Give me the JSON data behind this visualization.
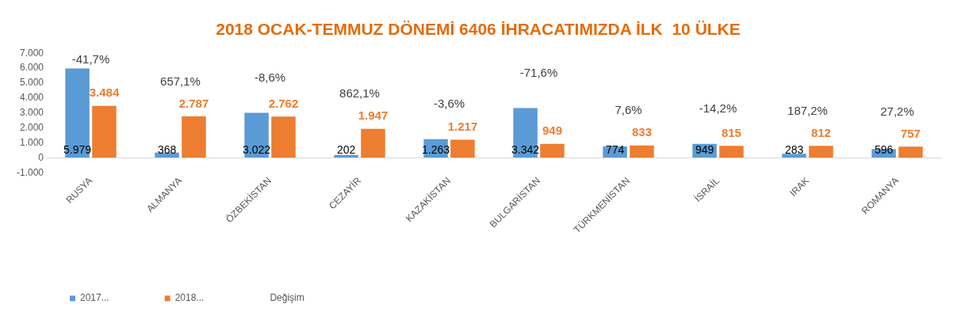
{
  "chart_data": {
    "type": "bar",
    "title": "2018 OCAK-TEMMUZ DÖNEMİ 6406 İHRACATIMIZDA İLK  10 ÜLKE",
    "categories": [
      "RUSYA",
      "ALMANYA",
      "ÖZBEKİSTAN",
      "CEZAYİR",
      "KAZAKİSTAN",
      "BULGARİSTAN",
      "TÜRKMENİSTAN",
      "İSRAİL",
      "IRAK",
      "ROMANYA"
    ],
    "series": [
      {
        "name": "2017...",
        "color": "#5b9bd5",
        "values": [
          5979,
          368,
          3022,
          202,
          1263,
          3342,
          774,
          949,
          283,
          596
        ],
        "value_labels": [
          "5.979",
          "368",
          "3.022",
          "202",
          "1.263",
          "3.342",
          "774",
          "949",
          "283",
          "596"
        ]
      },
      {
        "name": "2018...",
        "color": "#ed7d31",
        "values": [
          3484,
          2787,
          2762,
          1947,
          1217,
          949,
          833,
          815,
          812,
          757
        ],
        "value_labels": [
          "3.484",
          "2.787",
          "2.762",
          "1.947",
          "1.217",
          "949",
          "833",
          "815",
          "812",
          "757"
        ]
      },
      {
        "name": "Değişim",
        "type": "line",
        "values": [
          null,
          null,
          null,
          null,
          null,
          null,
          null,
          null,
          null,
          null
        ]
      }
    ],
    "annotations": [
      "-41,7%",
      "657,1%",
      "-8,6%",
      "862,1%",
      "-3,6%",
      "-71,6%",
      "7,6%",
      "-14,2%",
      "187,2%",
      "27,2%"
    ],
    "ylim": [
      -1000,
      7000
    ],
    "yticks": [
      {
        "value": -1000,
        "label": "-1.000"
      },
      {
        "value": 0,
        "label": "0"
      },
      {
        "value": 1000,
        "label": "1.000"
      },
      {
        "value": 2000,
        "label": "2.000"
      },
      {
        "value": 3000,
        "label": "3.000"
      },
      {
        "value": 4000,
        "label": "4.000"
      },
      {
        "value": 5000,
        "label": "5.000"
      },
      {
        "value": 6000,
        "label": "6.000"
      },
      {
        "value": 7000,
        "label": "7.000"
      }
    ],
    "grid": false,
    "legend": "bottom left"
  }
}
